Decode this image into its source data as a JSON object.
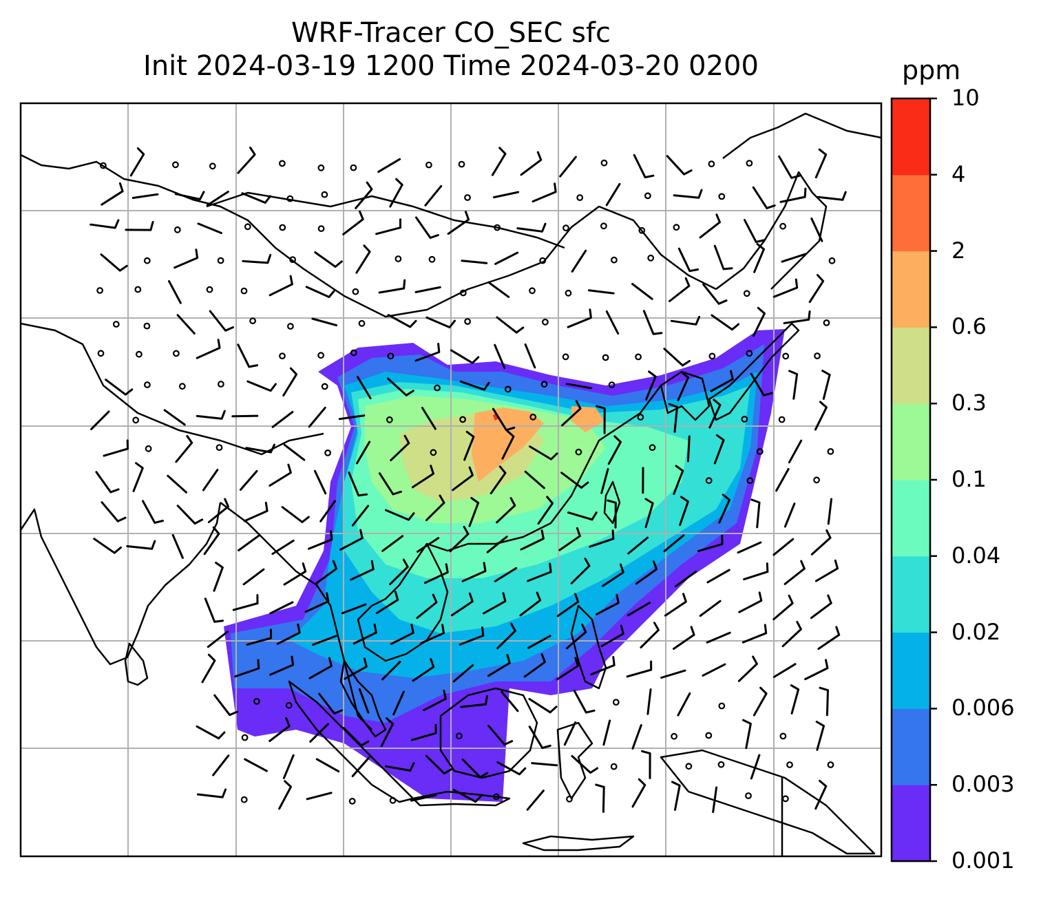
{
  "title": {
    "line1": "WRF-Tracer CO_SEC sfc",
    "line2": "Init 2024-03-19 1200 Time 2024-03-20 0200"
  },
  "colorbar": {
    "unit": "ppm",
    "levels": [
      "0.001",
      "0.003",
      "0.006",
      "0.02",
      "0.04",
      "0.1",
      "0.3",
      "0.6",
      "2",
      "4",
      "10"
    ],
    "colors": [
      "#6a2cf7",
      "#3575ee",
      "#04b2e9",
      "#34dfd6",
      "#6cfbbe",
      "#9df896",
      "#cedf87",
      "#fdaf5f",
      "#fe6e38",
      "#fa2b17"
    ]
  },
  "map": {
    "gridlines": true,
    "gridline_color": "#b0b0b0",
    "coastline_color": "#000000",
    "barb_color": "#000000"
  }
}
